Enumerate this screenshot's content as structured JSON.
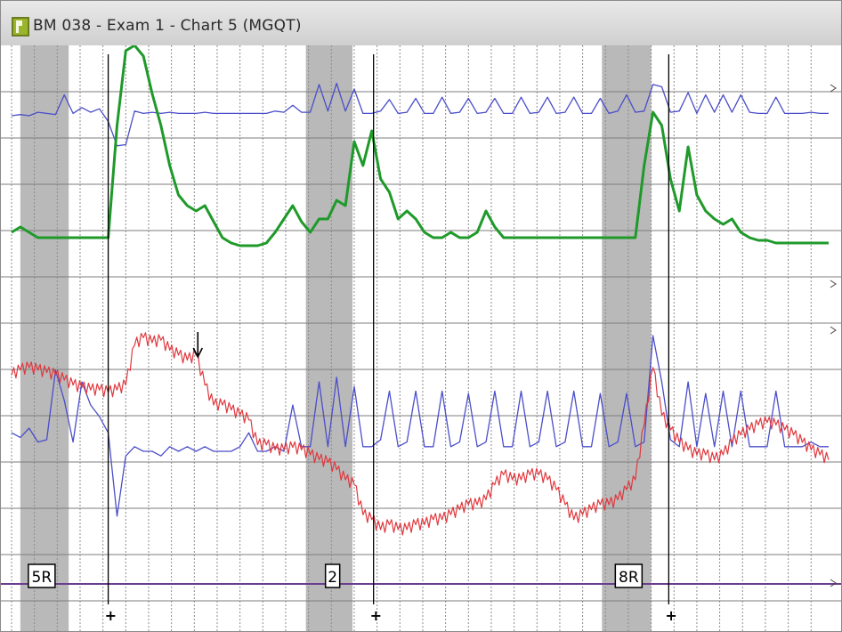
{
  "window": {
    "title": "BM 038 - Exam 1 - Chart 5 (MGQT)",
    "icon": "polygraph-app-icon"
  },
  "chart_data": {
    "type": "line",
    "x_unit": "chart-scroll-seconds",
    "xlim": [
      0,
      93
    ],
    "grid": true,
    "channel_ylim": [
      0,
      100
    ],
    "colors": {
      "pneumo": "#4a4ec9",
      "eda": "#1f9a2a",
      "cardio": "#e0383e",
      "baseline": "#6a3d8f",
      "marker": "#000000",
      "stimulus_shading": "#b9b9b9"
    },
    "stimulus_regions": [
      {
        "label": "5R",
        "start": 1.0,
        "end": 6.5
      },
      {
        "label": "2",
        "start": 33.5,
        "end": 38.8
      },
      {
        "label": "8R",
        "start": 67.2,
        "end": 72.8
      }
    ],
    "answer_markers": [
      11.0,
      41.2,
      74.8
    ],
    "arrow_annotation_x": 21.2,
    "series": [
      {
        "channel": "upper-pneumo",
        "x": [
          0,
          1,
          2,
          3,
          4,
          5,
          6,
          7,
          8,
          9,
          10,
          11,
          12,
          13,
          14,
          15,
          16,
          17,
          18,
          19,
          20,
          21,
          22,
          23,
          24,
          25,
          26,
          27,
          28,
          29,
          30,
          31,
          32,
          33,
          34,
          35,
          36,
          37,
          38,
          39,
          40,
          41,
          42,
          43,
          44,
          45,
          46,
          47,
          48,
          49,
          50,
          51,
          52,
          53,
          54,
          55,
          56,
          57,
          58,
          59,
          60,
          61,
          62,
          63,
          64,
          65,
          66,
          67,
          68,
          69,
          70,
          71,
          72,
          73,
          74,
          75,
          76,
          77,
          78,
          79,
          80,
          81,
          82,
          83,
          84,
          85,
          86,
          87,
          88,
          89,
          90,
          91,
          92,
          93
        ],
        "y": [
          70,
          71,
          70,
          73,
          72,
          71,
          88,
          72,
          77,
          73,
          76,
          65,
          44,
          45,
          74,
          72,
          73,
          72,
          73,
          72,
          72,
          72,
          73,
          72,
          72,
          72,
          72,
          72,
          72,
          72,
          74,
          73,
          79,
          73,
          73,
          97,
          74,
          98,
          74,
          93,
          72,
          72,
          74,
          84,
          72,
          73,
          85,
          72,
          72,
          86,
          72,
          73,
          85,
          72,
          73,
          85,
          72,
          72,
          86,
          72,
          73,
          86,
          72,
          73,
          86,
          72,
          72,
          85,
          72,
          74,
          88,
          73,
          74,
          97,
          95,
          73,
          74,
          90,
          72,
          88,
          73,
          88,
          73,
          88,
          73,
          72,
          72,
          86,
          72,
          72,
          72,
          73,
          72,
          72
        ]
      },
      {
        "channel": "eda",
        "x": [
          0,
          1,
          2,
          3,
          4,
          5,
          6,
          7,
          8,
          9,
          10,
          11,
          12,
          13,
          14,
          15,
          16,
          17,
          18,
          19,
          20,
          21,
          22,
          23,
          24,
          25,
          26,
          27,
          28,
          29,
          30,
          31,
          32,
          33,
          34,
          35,
          36,
          37,
          38,
          39,
          40,
          41,
          42,
          43,
          44,
          45,
          46,
          47,
          48,
          49,
          50,
          51,
          52,
          53,
          54,
          55,
          56,
          57,
          58,
          59,
          60,
          61,
          62,
          63,
          64,
          65,
          66,
          67,
          68,
          69,
          70,
          71,
          72,
          73,
          74,
          75,
          76,
          77,
          78,
          79,
          80,
          81,
          82,
          83,
          84,
          85,
          86,
          87,
          88,
          89,
          90,
          91,
          92,
          93
        ],
        "y": [
          30,
          32,
          30,
          28,
          28,
          28,
          28,
          28,
          28,
          28,
          28,
          28,
          70,
          98,
          100,
          96,
          82,
          70,
          55,
          44,
          40,
          38,
          40,
          34,
          28,
          26,
          25,
          25,
          25,
          26,
          30,
          35,
          40,
          34,
          30,
          35,
          35,
          42,
          40,
          64,
          55,
          68,
          50,
          45,
          35,
          38,
          35,
          30,
          28,
          28,
          30,
          28,
          28,
          30,
          38,
          32,
          28,
          28,
          28,
          28,
          28,
          28,
          28,
          28,
          28,
          28,
          28,
          28,
          28,
          28,
          28,
          28,
          55,
          75,
          70,
          50,
          38,
          62,
          44,
          38,
          35,
          33,
          35,
          30,
          28,
          27,
          27,
          26,
          26,
          26,
          26,
          26,
          26,
          26
        ]
      },
      {
        "channel": "lower-pneumo",
        "x": [
          0,
          1,
          2,
          3,
          4,
          5,
          6,
          7,
          8,
          9,
          10,
          11,
          12,
          13,
          14,
          15,
          16,
          17,
          18,
          19,
          20,
          21,
          22,
          23,
          24,
          25,
          26,
          27,
          28,
          29,
          30,
          31,
          32,
          33,
          34,
          35,
          36,
          37,
          38,
          39,
          40,
          41,
          42,
          43,
          44,
          45,
          46,
          47,
          48,
          49,
          50,
          51,
          52,
          53,
          54,
          55,
          56,
          57,
          58,
          59,
          60,
          61,
          62,
          63,
          64,
          65,
          66,
          67,
          68,
          69,
          70,
          71,
          72,
          73,
          74,
          75,
          76,
          77,
          78,
          79,
          80,
          81,
          82,
          83,
          84,
          85,
          86,
          87,
          88,
          89,
          90,
          91,
          92,
          93
        ],
        "y": [
          48,
          46,
          50,
          44,
          45,
          75,
          62,
          44,
          70,
          60,
          55,
          48,
          12,
          38,
          42,
          40,
          40,
          38,
          42,
          40,
          42,
          40,
          42,
          40,
          40,
          40,
          42,
          48,
          40,
          40,
          42,
          40,
          60,
          42,
          42,
          70,
          42,
          72,
          42,
          68,
          42,
          42,
          45,
          66,
          42,
          44,
          66,
          42,
          42,
          66,
          42,
          44,
          65,
          42,
          44,
          66,
          42,
          42,
          66,
          42,
          44,
          66,
          42,
          44,
          66,
          42,
          42,
          65,
          42,
          44,
          65,
          42,
          44,
          90,
          70,
          45,
          42,
          70,
          42,
          65,
          42,
          66,
          42,
          66,
          42,
          42,
          42,
          66,
          42,
          42,
          42,
          44,
          42,
          42
        ]
      },
      {
        "channel": "cardio",
        "x": [
          0,
          1,
          2,
          3,
          4,
          5,
          6,
          7,
          8,
          9,
          10,
          11,
          12,
          13,
          14,
          15,
          16,
          17,
          18,
          19,
          20,
          21,
          22,
          23,
          24,
          25,
          26,
          27,
          28,
          29,
          30,
          31,
          32,
          33,
          34,
          35,
          36,
          37,
          38,
          39,
          40,
          41,
          42,
          43,
          44,
          45,
          46,
          47,
          48,
          49,
          50,
          51,
          52,
          53,
          54,
          55,
          56,
          57,
          58,
          59,
          60,
          61,
          62,
          63,
          64,
          65,
          66,
          67,
          68,
          69,
          70,
          71,
          72,
          73,
          74,
          75,
          76,
          77,
          78,
          79,
          80,
          81,
          82,
          83,
          84,
          85,
          86,
          87,
          88,
          89,
          90,
          91,
          92,
          93
        ],
        "y": [
          82,
          84,
          85,
          84,
          83,
          82,
          80,
          78,
          77,
          76,
          76,
          75,
          76,
          78,
          94,
          97,
          95,
          96,
          92,
          90,
          88,
          90,
          78,
          70,
          70,
          68,
          66,
          64,
          54,
          54,
          52,
          52,
          53,
          52,
          50,
          48,
          47,
          44,
          40,
          38,
          26,
          24,
          20,
          22,
          20,
          20,
          22,
          22,
          24,
          24,
          26,
          28,
          30,
          30,
          32,
          38,
          42,
          40,
          40,
          42,
          42,
          40,
          36,
          30,
          24,
          26,
          28,
          30,
          30,
          32,
          36,
          40,
          62,
          85,
          66,
          60,
          55,
          52,
          50,
          50,
          48,
          50,
          55,
          58,
          60,
          62,
          63,
          62,
          60,
          58,
          55,
          52,
          50,
          48
        ]
      }
    ],
    "title": "",
    "xlabel": "",
    "ylabel": ""
  }
}
